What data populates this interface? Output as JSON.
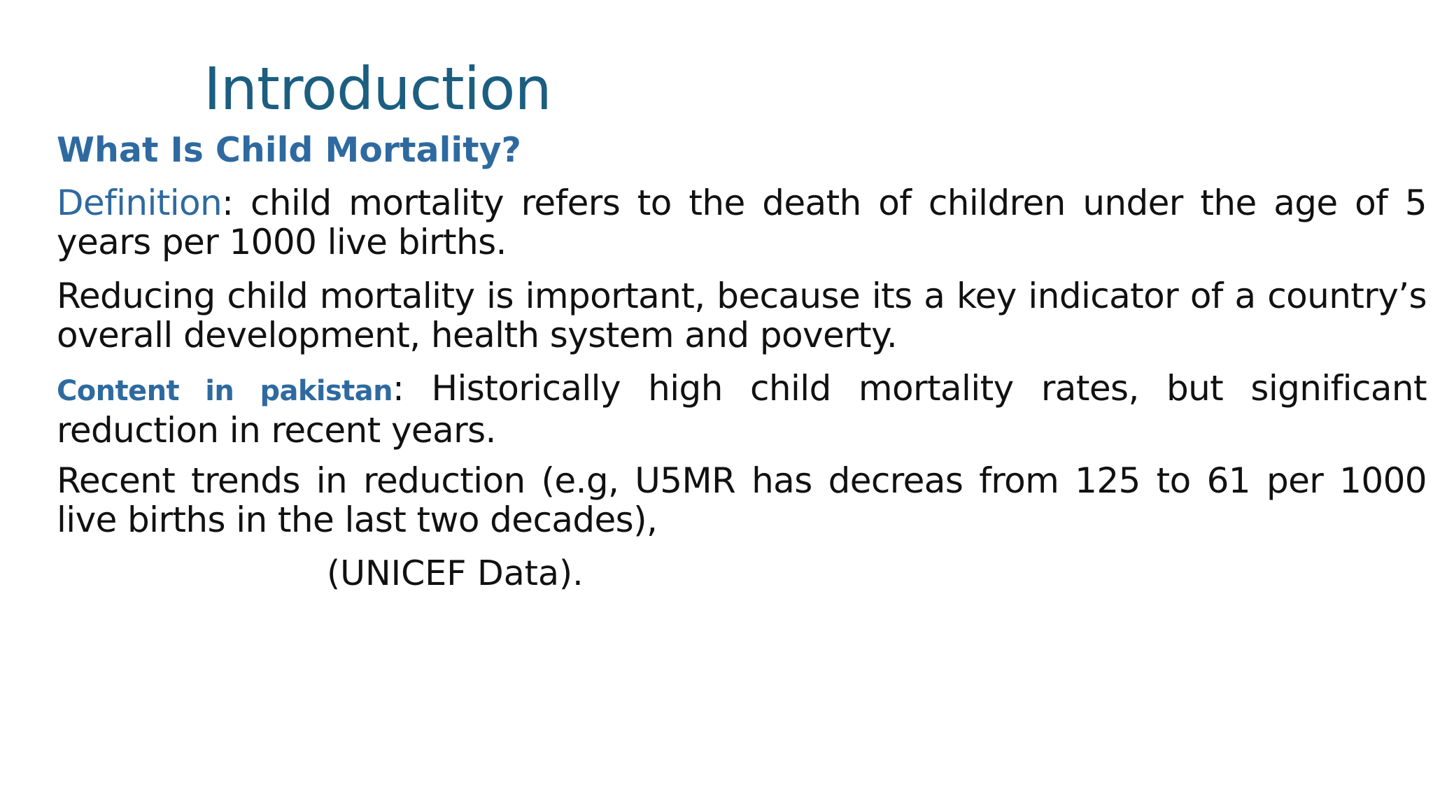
{
  "slide": {
    "title": "Introduction",
    "subtitle": "What Is Child Mortality?",
    "paragraphs": [
      {
        "lead": "Definition",
        "text": ": child mortality refers to the death of children under the age of 5 years per 1000 live births."
      },
      {
        "text": "Reducing child mortality is important, because its a key indicator of a country’s overall development, health system and poverty."
      },
      {
        "lead": "Content in pakistan",
        "text": ": Historically high child mortality rates, but significant reduction in recent years."
      },
      {
        "text": "Recent trends in reduction (e.g, U5MR has decreas from 125 to 61 per 1000 live births in the last two decades),"
      }
    ],
    "citation": "(UNICEF Data)."
  },
  "colors": {
    "title": "#1b5e80",
    "accent": "#2e6aa0",
    "body_text": "#111111",
    "background": "#ffffff"
  }
}
